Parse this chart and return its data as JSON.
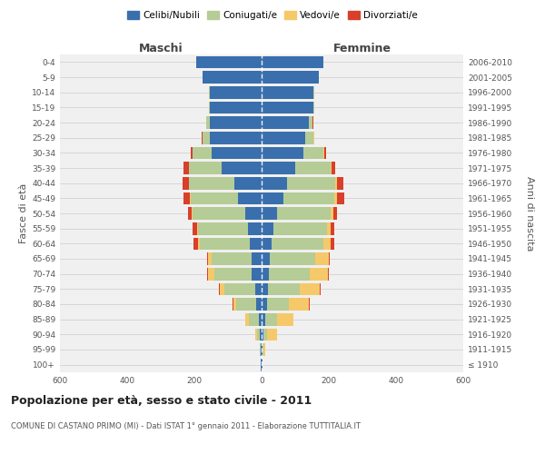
{
  "age_groups": [
    "100+",
    "95-99",
    "90-94",
    "85-89",
    "80-84",
    "75-79",
    "70-74",
    "65-69",
    "60-64",
    "55-59",
    "50-54",
    "45-49",
    "40-44",
    "35-39",
    "30-34",
    "25-29",
    "20-24",
    "15-19",
    "10-14",
    "5-9",
    "0-4"
  ],
  "birth_years": [
    "≤ 1910",
    "1911-1915",
    "1916-1920",
    "1921-1925",
    "1926-1930",
    "1931-1935",
    "1936-1940",
    "1941-1945",
    "1946-1950",
    "1951-1955",
    "1956-1960",
    "1961-1965",
    "1966-1970",
    "1971-1975",
    "1976-1980",
    "1981-1985",
    "1986-1990",
    "1991-1995",
    "1996-2000",
    "2001-2005",
    "2006-2010"
  ],
  "maschi": {
    "celibi": [
      2,
      3,
      5,
      8,
      15,
      20,
      30,
      30,
      35,
      40,
      50,
      70,
      80,
      120,
      150,
      155,
      155,
      155,
      155,
      175,
      195
    ],
    "coniugati": [
      1,
      2,
      8,
      30,
      60,
      90,
      110,
      120,
      150,
      150,
      155,
      140,
      135,
      95,
      55,
      20,
      10,
      2,
      2,
      0,
      0
    ],
    "vedovi": [
      0,
      1,
      5,
      10,
      10,
      15,
      20,
      10,
      5,
      3,
      2,
      3,
      2,
      2,
      1,
      1,
      0,
      0,
      0,
      0,
      0
    ],
    "divorziati": [
      0,
      0,
      0,
      0,
      2,
      2,
      2,
      3,
      12,
      12,
      12,
      20,
      18,
      15,
      5,
      2,
      1,
      0,
      0,
      0,
      0
    ]
  },
  "femmine": {
    "nubili": [
      2,
      3,
      5,
      10,
      15,
      18,
      22,
      25,
      30,
      35,
      45,
      65,
      75,
      100,
      125,
      130,
      140,
      155,
      155,
      170,
      185
    ],
    "coniugate": [
      1,
      3,
      12,
      35,
      65,
      95,
      120,
      135,
      155,
      160,
      160,
      150,
      145,
      105,
      60,
      25,
      12,
      3,
      2,
      0,
      0
    ],
    "vedove": [
      1,
      5,
      30,
      50,
      60,
      60,
      55,
      40,
      20,
      10,
      8,
      10,
      5,
      3,
      2,
      1,
      0,
      0,
      0,
      0,
      0
    ],
    "divorziate": [
      0,
      0,
      0,
      0,
      2,
      2,
      2,
      3,
      12,
      12,
      12,
      20,
      18,
      12,
      5,
      2,
      1,
      0,
      0,
      0,
      0
    ]
  },
  "colors": {
    "celibi": "#3a6fad",
    "coniugati": "#b5cc96",
    "vedovi": "#f5c96a",
    "divorziati": "#d93f2a"
  },
  "xlim": 600,
  "title": "Popolazione per età, sesso e stato civile - 2011",
  "subtitle": "COMUNE DI CASTANO PRIMO (MI) - Dati ISTAT 1° gennaio 2011 - Elaborazione TUTTITALIA.IT",
  "ylabel_left": "Fasce di età",
  "ylabel_right": "Anni di nascita",
  "xlabel_maschi": "Maschi",
  "xlabel_femmine": "Femmine",
  "legend_labels": [
    "Celibi/Nubili",
    "Coniugati/e",
    "Vedovi/e",
    "Divorziati/e"
  ],
  "bg_color": "#f0f0f0",
  "grid_color": "#cccccc"
}
